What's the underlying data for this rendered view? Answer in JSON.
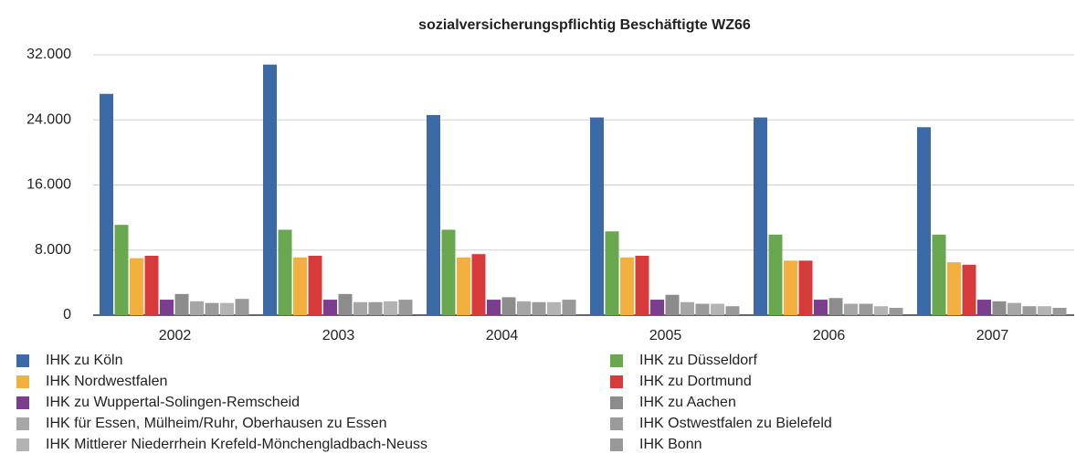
{
  "chart_data": {
    "type": "bar",
    "title": "sozialversicherungspflichtig Beschäftigte WZ66",
    "categories": [
      "2002",
      "2003",
      "2004",
      "2005",
      "2006",
      "2007"
    ],
    "series": [
      {
        "name": "IHK zu Köln",
        "color": "#3b6aa6",
        "values": [
          27200,
          30800,
          24600,
          24300,
          24300,
          23100
        ]
      },
      {
        "name": "IHK zu Düsseldorf",
        "color": "#6aa84f",
        "values": [
          11100,
          10500,
          10500,
          10300,
          9900,
          9900
        ]
      },
      {
        "name": "IHK Nordwestfalen",
        "color": "#f2b13f",
        "values": [
          7000,
          7100,
          7100,
          7100,
          6700,
          6500
        ]
      },
      {
        "name": "IHK zu Dortmund",
        "color": "#d63a3a",
        "values": [
          7300,
          7300,
          7500,
          7300,
          6700,
          6200
        ]
      },
      {
        "name": "IHK zu Wuppertal-Solingen-Remscheid",
        "color": "#7b3e8e",
        "values": [
          1900,
          1900,
          1900,
          1900,
          1900,
          1900
        ]
      },
      {
        "name": "IHK zu Aachen",
        "color": "#8c8c8c",
        "values": [
          2600,
          2600,
          2200,
          2500,
          2100,
          1700
        ]
      },
      {
        "name": "IHK für Essen, Mülheim/Ruhr, Oberhausen zu Essen",
        "color": "#a6a6a6",
        "values": [
          1700,
          1600,
          1700,
          1600,
          1400,
          1500
        ]
      },
      {
        "name": "IHK Ostwestfalen zu Bielefeld",
        "color": "#9a9a9a",
        "values": [
          1500,
          1600,
          1600,
          1400,
          1400,
          1100
        ]
      },
      {
        "name": "IHK Mittlerer Niederrhein Krefeld-Mönchengladbach-Neuss",
        "color": "#b3b3b3",
        "values": [
          1500,
          1700,
          1600,
          1400,
          1100,
          1100
        ]
      },
      {
        "name": "IHK Bonn",
        "color": "#999999",
        "values": [
          2000,
          1900,
          1900,
          1100,
          900,
          900
        ]
      }
    ],
    "ylim": [
      0,
      32000
    ],
    "yticks": [
      0,
      {
        "value": 8000,
        "label": "8.000"
      },
      {
        "value": 16000,
        "label": "16.000"
      },
      {
        "value": 24000,
        "label": "24.000"
      },
      {
        "value": 32000,
        "label": "32.000"
      }
    ],
    "grid": true
  }
}
